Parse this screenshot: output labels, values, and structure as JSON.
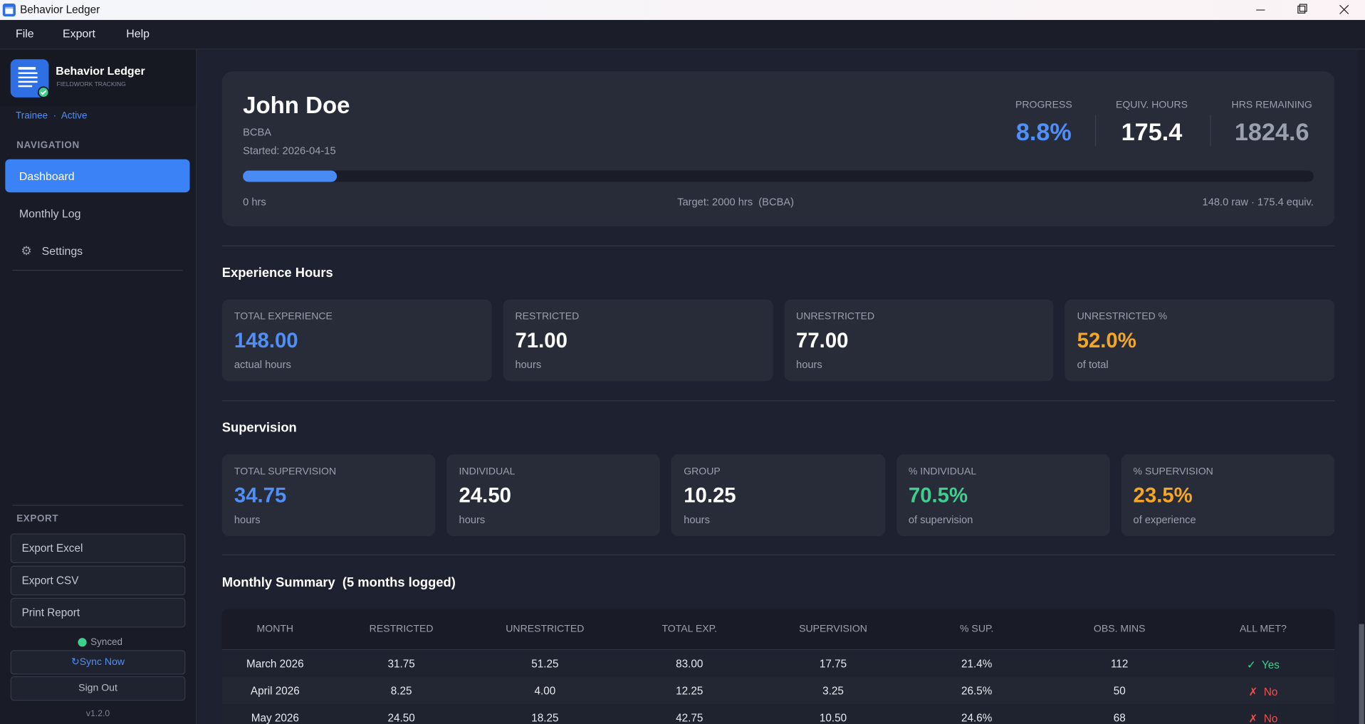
{
  "window": {
    "title": "Behavior Ledger"
  },
  "menu": [
    "File",
    "Export",
    "Help"
  ],
  "sidebar": {
    "app_name": "Behavior Ledger",
    "app_subtitle": "FIELDWORK TRACKING",
    "role": "Trainee",
    "separator": "·",
    "status": "Active",
    "nav_heading": "NAVIGATION",
    "nav": [
      "Dashboard",
      "Monthly Log",
      "Settings"
    ],
    "export_heading": "EXPORT",
    "export_buttons": [
      "Export Excel",
      "Export CSV",
      "Print Report"
    ],
    "sync_status": "Synced",
    "sync_button": "Sync Now",
    "sign_out": "Sign Out",
    "version": "v1.2.0"
  },
  "profile": {
    "name": "John Doe",
    "credential": "BCBA",
    "started": "Started: 2026-04-15",
    "stats": [
      {
        "label": "PROGRESS",
        "value": "8.8%",
        "color": "#4f8ff7"
      },
      {
        "label": "EQUIV. HOURS",
        "value": "175.4",
        "color": "#ffffff"
      },
      {
        "label": "HRS REMAINING",
        "value": "1824.6",
        "color": "#9aa0ad"
      }
    ],
    "progress_bar": 8.8,
    "progress_start": "0 hrs",
    "progress_target": "Target: 2000 hrs  (BCBA)",
    "progress_detail": "148.0 raw · 175.4 equiv."
  },
  "experience": {
    "title": "Experience Hours",
    "cards": [
      {
        "label": "TOTAL EXPERIENCE",
        "value": "148.00",
        "unit": "actual hours",
        "color": "#4f8ff7"
      },
      {
        "label": "RESTRICTED",
        "value": "71.00",
        "unit": "hours",
        "color": "#ffffff"
      },
      {
        "label": "UNRESTRICTED",
        "value": "77.00",
        "unit": "hours",
        "color": "#ffffff"
      },
      {
        "label": "UNRESTRICTED %",
        "value": "52.0%",
        "unit": "of total",
        "color": "#f5a623"
      }
    ]
  },
  "supervision": {
    "title": "Supervision",
    "cards": [
      {
        "label": "TOTAL SUPERVISION",
        "value": "34.75",
        "unit": "hours",
        "color": "#4f8ff7"
      },
      {
        "label": "INDIVIDUAL",
        "value": "24.50",
        "unit": "hours",
        "color": "#ffffff"
      },
      {
        "label": "GROUP",
        "value": "10.25",
        "unit": "hours",
        "color": "#ffffff"
      },
      {
        "label": "% INDIVIDUAL",
        "value": "70.5%",
        "unit": "of supervision",
        "color": "#3ecf8e"
      },
      {
        "label": "% SUPERVISION",
        "value": "23.5%",
        "unit": "of experience",
        "color": "#f5a623"
      }
    ]
  },
  "monthly": {
    "title": "Monthly Summary  (5 months logged)",
    "columns": [
      "MONTH",
      "RESTRICTED",
      "UNRESTRICTED",
      "TOTAL EXP.",
      "SUPERVISION",
      "% SUP.",
      "OBS. MINS",
      "ALL MET?"
    ],
    "rows": [
      [
        "March 2026",
        "31.75",
        "51.25",
        "83.00",
        "17.75",
        "21.4%",
        "112",
        "✓  Yes"
      ],
      [
        "April 2026",
        "8.25",
        "4.00",
        "12.25",
        "3.25",
        "26.5%",
        "50",
        "✗  No"
      ],
      [
        "May 2026",
        "24.50",
        "18.25",
        "42.75",
        "10.50",
        "24.6%",
        "68",
        "✗  No"
      ]
    ],
    "met_colors": [
      "#3ecf8e",
      "#f0504a",
      "#f0504a"
    ]
  }
}
